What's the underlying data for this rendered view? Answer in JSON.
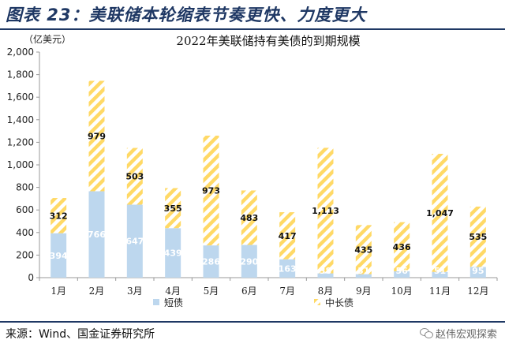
{
  "header": {
    "title": "图表 23：美联储本轮缩表节奏更快、力度更大"
  },
  "footer": {
    "source": "来源：Wind、国金证券研究所",
    "watermark": "赵伟宏观探索"
  },
  "colors": {
    "short_fill": "#bdd7ee",
    "long_stripe": "#ffd966",
    "header_accent": "#1f3864"
  },
  "chart_data": {
    "type": "bar",
    "stacked": true,
    "title": "2022年美联储持有美债的到期规模",
    "unit_label": "（亿美元）",
    "categories": [
      "1月",
      "2月",
      "3月",
      "4月",
      "5月",
      "6月",
      "7月",
      "8月",
      "9月",
      "10月",
      "11月",
      "12月"
    ],
    "series": [
      {
        "name": "短债",
        "values": [
          394,
          766,
          647,
          439,
          286,
          290,
          163,
          38,
          31,
          56,
          51,
          95
        ]
      },
      {
        "name": "中长债",
        "values": [
          312,
          979,
          503,
          355,
          973,
          483,
          417,
          1113,
          435,
          436,
          1047,
          535
        ]
      }
    ],
    "ylim": [
      0,
      2000
    ],
    "yticks": [
      "0",
      "200",
      "400",
      "600",
      "800",
      "1,000",
      "1,200",
      "1,400",
      "1,600",
      "1,800",
      "2,000"
    ],
    "ytick_values": [
      0,
      200,
      400,
      600,
      800,
      1000,
      1200,
      1400,
      1600,
      1800,
      2000
    ],
    "long_labels": [
      "312",
      "979",
      "503",
      "355",
      "973",
      "483",
      "417",
      "1,113",
      "435",
      "436",
      "1,047",
      "535"
    ],
    "short_labels": [
      "394",
      "766",
      "647",
      "439",
      "286",
      "290",
      "163",
      "38",
      "31",
      "56",
      "51",
      "95"
    ],
    "legend": {
      "placement": "bottom"
    },
    "grid": false
  }
}
